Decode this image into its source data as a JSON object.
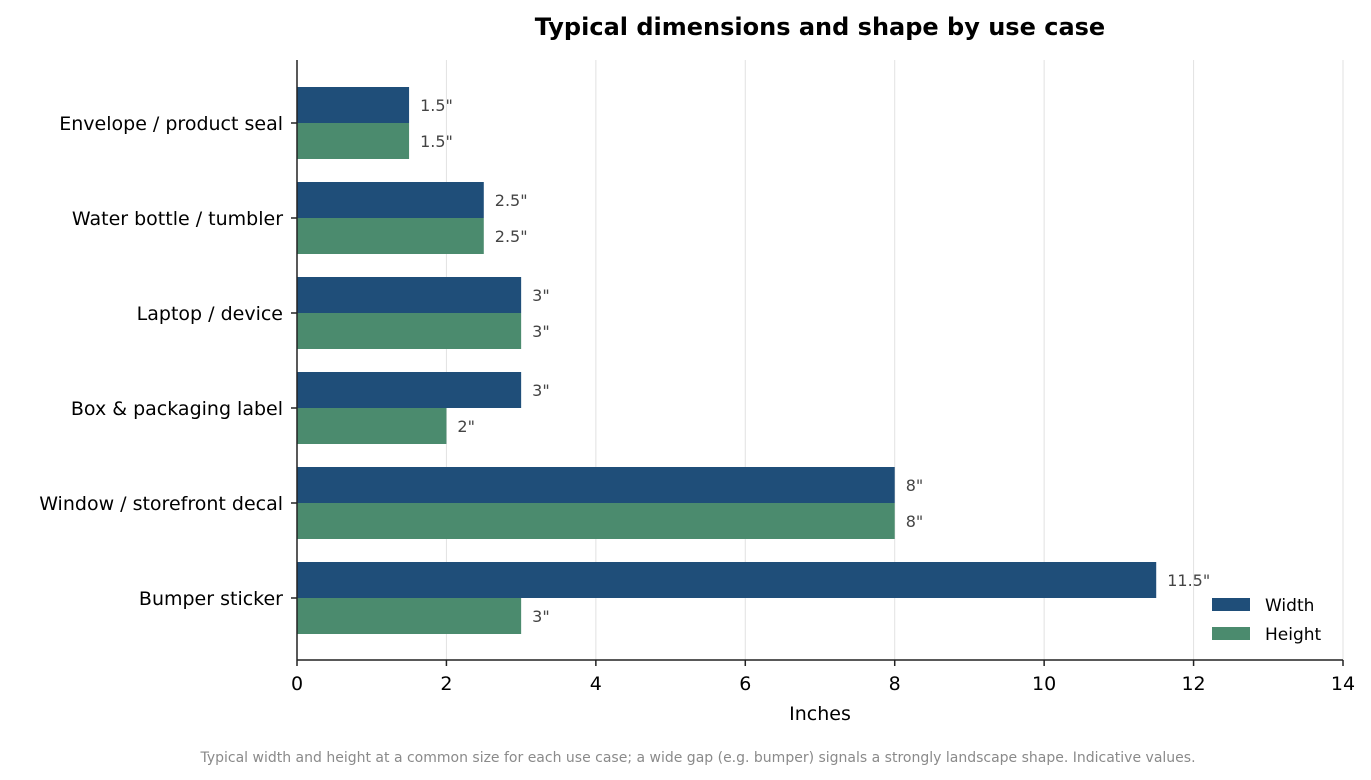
{
  "chart_data": {
    "type": "bar",
    "orientation": "horizontal",
    "title": "Typical dimensions and shape by use case",
    "xlabel": "Inches",
    "ylabel": "",
    "xlim": [
      0,
      14
    ],
    "xticks": [
      0,
      2,
      4,
      6,
      8,
      10,
      12,
      14
    ],
    "grid": "vertical",
    "legend_position": "bottom-right",
    "categories": [
      "Envelope / product seal",
      "Water bottle / tumbler",
      "Laptop / device",
      "Box & packaging label",
      "Window / storefront decal",
      "Bumper sticker"
    ],
    "series": [
      {
        "name": "Width",
        "color": "#1f4e79",
        "values": [
          1.5,
          2.5,
          3,
          3,
          8,
          11.5
        ],
        "labels": [
          "1.5\"",
          "2.5\"",
          "3\"",
          "3\"",
          "8\"",
          "11.5\""
        ]
      },
      {
        "name": "Height",
        "color": "#4b8b6e",
        "values": [
          1.5,
          2.5,
          3,
          2,
          8,
          3
        ],
        "labels": [
          "1.5\"",
          "2.5\"",
          "3\"",
          "2\"",
          "8\"",
          "3\""
        ]
      }
    ],
    "footnote": "Typical width and height at a common size for each use case; a wide gap (e.g. bumper) signals a strongly landscape shape. Indicative values."
  }
}
